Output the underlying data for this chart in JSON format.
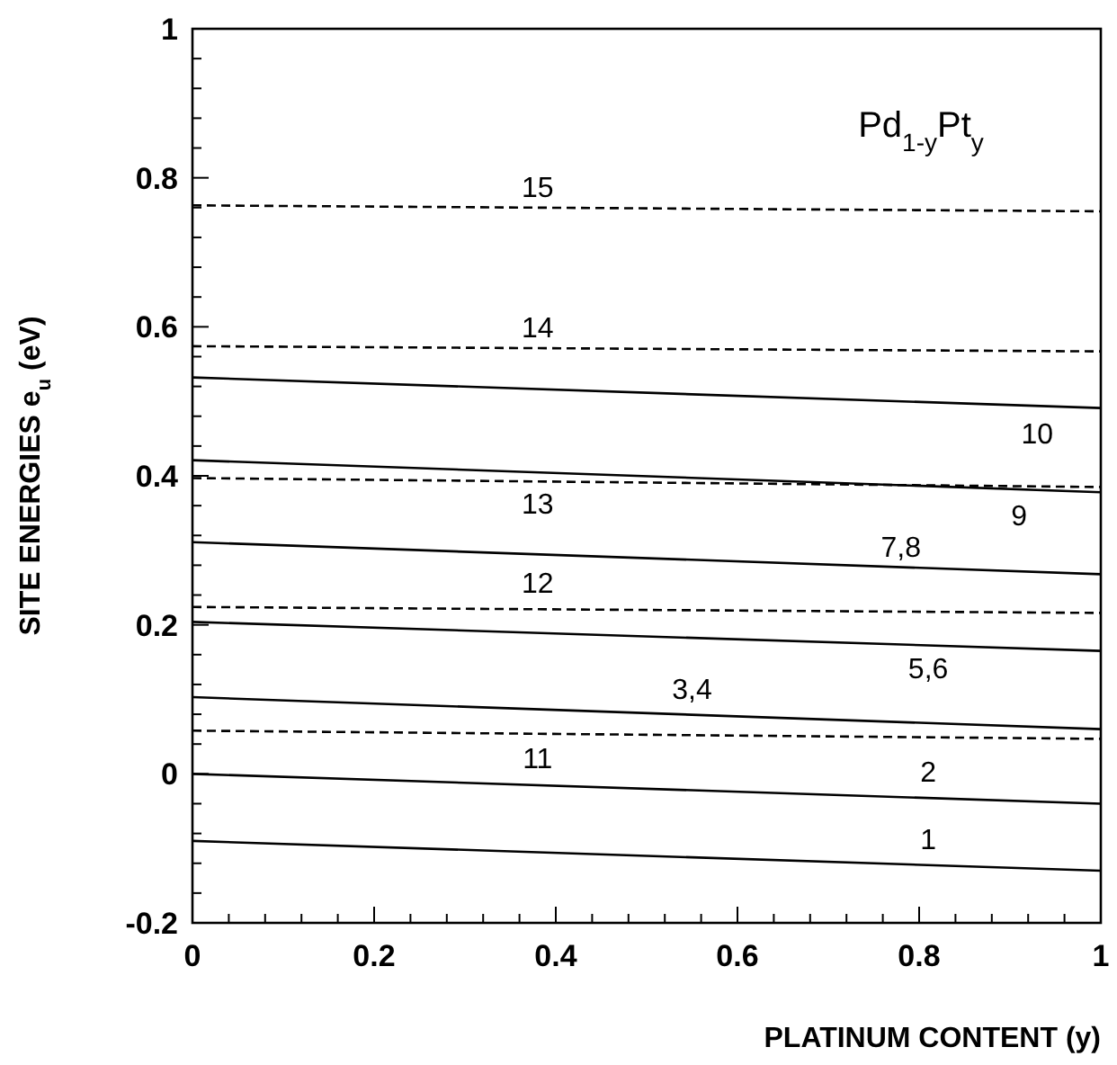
{
  "chart_data": {
    "type": "line",
    "xlabel": "PLATINUM CONTENT (y)",
    "ylabel": "SITE ENERGIES e$_{u}$ (eV)",
    "x": [
      0,
      1
    ],
    "series": [
      {
        "name": "15",
        "color": "#000000",
        "line_style": "dashed",
        "values": [
          0.763,
          0.755
        ]
      },
      {
        "name": "14",
        "color": "#000000",
        "line_style": "dashed",
        "values": [
          0.574,
          0.567
        ]
      },
      {
        "name": "10",
        "color": "#000000",
        "line_style": "solid",
        "values": [
          0.532,
          0.491
        ]
      },
      {
        "name": "9",
        "color": "#000000",
        "line_style": "solid",
        "values": [
          0.421,
          0.378
        ]
      },
      {
        "name": "13",
        "color": "#000000",
        "line_style": "dashed",
        "values": [
          0.397,
          0.385
        ]
      },
      {
        "name": "7,8",
        "color": "#000000",
        "line_style": "solid",
        "values": [
          0.311,
          0.268
        ]
      },
      {
        "name": "12",
        "color": "#000000",
        "line_style": "dashed",
        "values": [
          0.224,
          0.216
        ]
      },
      {
        "name": "5,6",
        "color": "#000000",
        "line_style": "solid",
        "values": [
          0.204,
          0.165
        ]
      },
      {
        "name": "3,4",
        "color": "#000000",
        "line_style": "solid",
        "values": [
          0.103,
          0.06
        ]
      },
      {
        "name": "11",
        "color": "#000000",
        "line_style": "dashed",
        "values": [
          0.058,
          0.047
        ]
      },
      {
        "name": "2",
        "color": "#000000",
        "line_style": "solid",
        "values": [
          0.0,
          -0.04
        ]
      },
      {
        "name": "1",
        "color": "#000000",
        "line_style": "solid",
        "values": [
          -0.09,
          -0.13
        ]
      }
    ],
    "annotations": [
      "Pd$_{1-y}$Pt$_{y}$"
    ],
    "xlim": [
      0,
      1
    ],
    "ylim": [
      -0.2,
      1
    ],
    "xticks": [
      0,
      {
        "value": 0.04,
        "label": null
      },
      {
        "value": 0.08,
        "label": null
      },
      {
        "value": 0.12,
        "label": null
      },
      {
        "value": 0.16,
        "label": null
      },
      0.2,
      {
        "value": 0.24,
        "label": null
      },
      {
        "value": 0.28,
        "label": null
      },
      {
        "value": 0.32,
        "label": null
      },
      {
        "value": 0.36,
        "label": null
      },
      0.4,
      {
        "value": 0.44,
        "label": null
      },
      {
        "value": 0.48,
        "label": null
      },
      {
        "value": 0.52,
        "label": null
      },
      {
        "value": 0.56,
        "label": null
      },
      0.6,
      {
        "value": 0.64,
        "label": null
      },
      {
        "value": 0.68,
        "label": null
      },
      {
        "value": 0.72,
        "label": null
      },
      {
        "value": 0.76,
        "label": null
      },
      0.8,
      {
        "value": 0.84,
        "label": null
      },
      {
        "value": 0.88,
        "label": null
      },
      {
        "value": 0.92,
        "label": null
      },
      {
        "value": 0.96,
        "label": null
      },
      1
    ],
    "yticks": [
      -0.2,
      {
        "value": -0.16,
        "label": null
      },
      {
        "value": -0.12,
        "label": null
      },
      {
        "value": -0.08,
        "label": null
      },
      {
        "value": -0.04,
        "label": null
      },
      0,
      {
        "value": 0.04,
        "label": null
      },
      {
        "value": 0.08,
        "label": null
      },
      {
        "value": 0.12,
        "label": null
      },
      {
        "value": 0.16,
        "label": null
      },
      0.2,
      {
        "value": 0.24,
        "label": null
      },
      {
        "value": 0.28,
        "label": null
      },
      {
        "value": 0.32,
        "label": null
      },
      {
        "value": 0.36,
        "label": null
      },
      0.4,
      {
        "value": 0.44,
        "label": null
      },
      {
        "value": 0.48,
        "label": null
      },
      {
        "value": 0.52,
        "label": null
      },
      {
        "value": 0.56,
        "label": null
      },
      0.6,
      {
        "value": 0.64,
        "label": null
      },
      {
        "value": 0.68,
        "label": null
      },
      {
        "value": 0.72,
        "label": null
      },
      {
        "value": 0.76,
        "label": null
      },
      0.8,
      {
        "value": 0.84,
        "label": null
      },
      {
        "value": 0.88,
        "label": null
      },
      {
        "value": 0.92,
        "label": null
      },
      {
        "value": 0.96,
        "label": null
      },
      1
    ],
    "grid": false
  }
}
